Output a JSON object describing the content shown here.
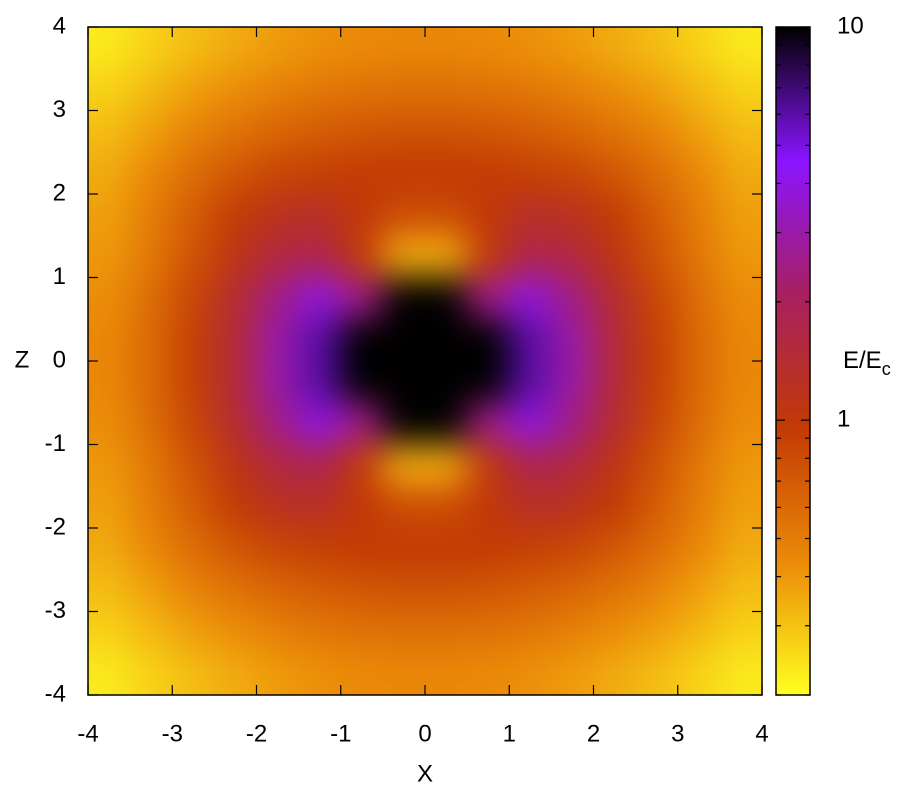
{
  "chart_data": {
    "type": "heatmap",
    "x_label": "X",
    "y_label": "Z",
    "colorbar_label": "E/E",
    "colorbar_label_sub": "c",
    "xlim": [
      -4,
      4
    ],
    "ylim": [
      -4,
      4
    ],
    "xticks": [
      -4,
      -3,
      -2,
      -1,
      0,
      1,
      2,
      3,
      4
    ],
    "yticks": [
      -4,
      -3,
      -2,
      -1,
      0,
      1,
      2,
      3,
      4
    ],
    "x": [
      -3.75,
      -3.25,
      -2.75,
      -2.25,
      -1.75,
      -1.25,
      -0.75,
      -0.25,
      0.25,
      0.75,
      1.25,
      1.75,
      2.25,
      2.75,
      3.25,
      3.75
    ],
    "y": [
      3.75,
      3.25,
      2.75,
      2.25,
      1.75,
      1.25,
      0.75,
      0.25,
      -0.25,
      -0.75,
      -1.25,
      -1.75,
      -2.25,
      -2.75,
      -3.25,
      -3.75
    ],
    "values": [
      [
        0.23,
        0.27,
        0.31,
        0.35,
        0.39,
        0.42,
        0.44,
        0.45,
        0.45,
        0.44,
        0.42,
        0.39,
        0.35,
        0.31,
        0.27,
        0.23
      ],
      [
        0.27,
        0.32,
        0.38,
        0.43,
        0.48,
        0.52,
        0.55,
        0.56,
        0.56,
        0.55,
        0.52,
        0.48,
        0.43,
        0.38,
        0.32,
        0.27
      ],
      [
        0.31,
        0.38,
        0.47,
        0.55,
        0.62,
        0.68,
        0.72,
        0.75,
        0.75,
        0.72,
        0.68,
        0.62,
        0.55,
        0.47,
        0.38,
        0.31
      ],
      [
        0.35,
        0.45,
        0.58,
        0.72,
        0.85,
        0.9,
        0.95,
        0.95,
        0.95,
        0.95,
        0.9,
        0.85,
        0.72,
        0.58,
        0.45,
        0.35
      ],
      [
        0.38,
        0.5,
        0.68,
        0.95,
        1.2,
        1.3,
        1.0,
        0.8,
        0.8,
        1.0,
        1.3,
        1.2,
        0.95,
        0.68,
        0.5,
        0.38
      ],
      [
        0.4,
        0.52,
        0.75,
        1.1,
        1.6,
        1.8,
        1.0,
        0.35,
        0.35,
        1.0,
        1.8,
        1.6,
        1.1,
        0.75,
        0.52,
        0.4
      ],
      [
        0.43,
        0.58,
        0.85,
        1.4,
        2.5,
        4,
        2.5,
        10,
        10,
        2.5,
        4,
        2.5,
        1.4,
        0.85,
        0.58,
        0.43
      ],
      [
        0.45,
        0.6,
        0.9,
        1.5,
        3,
        6,
        10,
        10,
        10,
        10,
        6,
        3,
        1.5,
        0.9,
        0.6,
        0.45
      ],
      [
        0.45,
        0.6,
        0.9,
        1.5,
        3,
        6,
        10,
        10,
        10,
        10,
        6,
        3,
        1.5,
        0.9,
        0.6,
        0.45
      ],
      [
        0.43,
        0.58,
        0.85,
        1.4,
        2.5,
        4,
        2.5,
        10,
        10,
        2.5,
        4,
        2.5,
        1.4,
        0.85,
        0.58,
        0.43
      ],
      [
        0.4,
        0.52,
        0.75,
        1.1,
        1.6,
        1.8,
        1.0,
        0.35,
        0.35,
        1.0,
        1.8,
        1.6,
        1.1,
        0.75,
        0.52,
        0.4
      ],
      [
        0.38,
        0.5,
        0.68,
        0.95,
        1.2,
        1.3,
        1.0,
        0.8,
        0.8,
        1.0,
        1.3,
        1.2,
        0.95,
        0.68,
        0.5,
        0.38
      ],
      [
        0.35,
        0.45,
        0.58,
        0.72,
        0.85,
        0.9,
        0.95,
        0.95,
        0.95,
        0.95,
        0.9,
        0.85,
        0.72,
        0.58,
        0.45,
        0.35
      ],
      [
        0.31,
        0.38,
        0.47,
        0.55,
        0.62,
        0.68,
        0.72,
        0.75,
        0.75,
        0.72,
        0.68,
        0.62,
        0.55,
        0.47,
        0.38,
        0.31
      ],
      [
        0.27,
        0.32,
        0.38,
        0.43,
        0.48,
        0.52,
        0.55,
        0.56,
        0.56,
        0.55,
        0.52,
        0.48,
        0.43,
        0.38,
        0.32,
        0.27
      ],
      [
        0.23,
        0.27,
        0.31,
        0.35,
        0.39,
        0.42,
        0.44,
        0.45,
        0.45,
        0.44,
        0.42,
        0.39,
        0.35,
        0.31,
        0.27,
        0.23
      ]
    ],
    "zlim": [
      0.2,
      10
    ],
    "zticks": [
      1,
      10
    ],
    "z_minor_ticks": [
      0.2,
      0.3,
      0.4,
      0.5,
      0.6,
      0.7,
      0.8,
      0.9,
      2,
      3,
      4,
      5,
      6,
      7,
      8,
      9
    ],
    "log_colorscale": true,
    "colormap": [
      "#ffff20",
      "#eb8a08",
      "#c23a04",
      "#a82060",
      "#8a14ff",
      "#000000"
    ]
  }
}
